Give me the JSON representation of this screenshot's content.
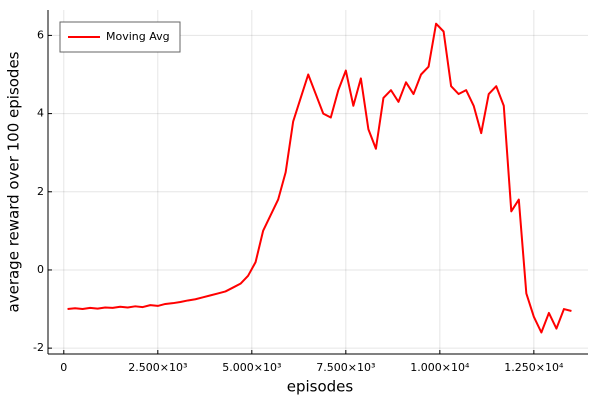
{
  "chart_data": {
    "type": "line",
    "xlabel": "episodes",
    "ylabel": "average reward over 100 episodes",
    "x": [
      100,
      300,
      500,
      700,
      900,
      1100,
      1300,
      1500,
      1700,
      1900,
      2100,
      2300,
      2500,
      2700,
      2900,
      3100,
      3300,
      3500,
      3700,
      3900,
      4100,
      4300,
      4500,
      4700,
      4900,
      5100,
      5300,
      5500,
      5700,
      5900,
      6100,
      6300,
      6500,
      6700,
      6900,
      7100,
      7300,
      7500,
      7700,
      7900,
      8100,
      8300,
      8500,
      8700,
      8900,
      9100,
      9300,
      9500,
      9700,
      9900,
      10100,
      10300,
      10500,
      10700,
      10900,
      11100,
      11300,
      11500,
      11700,
      11900,
      12100,
      12300,
      12500,
      12700,
      12900,
      13100,
      13300,
      13500
    ],
    "series": [
      {
        "name": "Moving Avg",
        "color": "#ff0000",
        "values": [
          -1.0,
          -0.98,
          -1.0,
          -0.97,
          -0.99,
          -0.96,
          -0.97,
          -0.94,
          -0.96,
          -0.93,
          -0.95,
          -0.9,
          -0.92,
          -0.87,
          -0.85,
          -0.82,
          -0.78,
          -0.75,
          -0.7,
          -0.65,
          -0.6,
          -0.55,
          -0.45,
          -0.35,
          -0.15,
          0.2,
          1.0,
          1.4,
          1.8,
          2.5,
          3.8,
          4.4,
          5.0,
          4.5,
          4.0,
          3.9,
          4.6,
          5.1,
          4.2,
          4.9,
          3.6,
          3.1,
          4.4,
          4.6,
          4.3,
          4.8,
          4.5,
          5.0,
          5.2,
          6.3,
          6.1,
          4.7,
          4.5,
          4.6,
          4.2,
          3.5,
          4.5,
          4.7,
          4.2,
          1.5,
          1.8,
          -0.6,
          -1.2,
          -1.6,
          -1.1,
          -1.5,
          -1.0,
          -1.05
        ]
      }
    ],
    "xlim": [
      -420,
      13940
    ],
    "ylim": [
      -2.15,
      6.65
    ],
    "xticks": [
      0,
      {
        "value": 2500,
        "label": "2.500×10³"
      },
      {
        "value": 5000,
        "label": "5.000×10³"
      },
      {
        "value": 7500,
        "label": "7.500×10³"
      },
      {
        "value": 10000,
        "label": "1.000×10⁴"
      },
      {
        "value": 12500,
        "label": "1.250×10⁴"
      }
    ],
    "yticks": [
      -2,
      0,
      2,
      4,
      6
    ],
    "grid": true,
    "legend": "top-left"
  }
}
